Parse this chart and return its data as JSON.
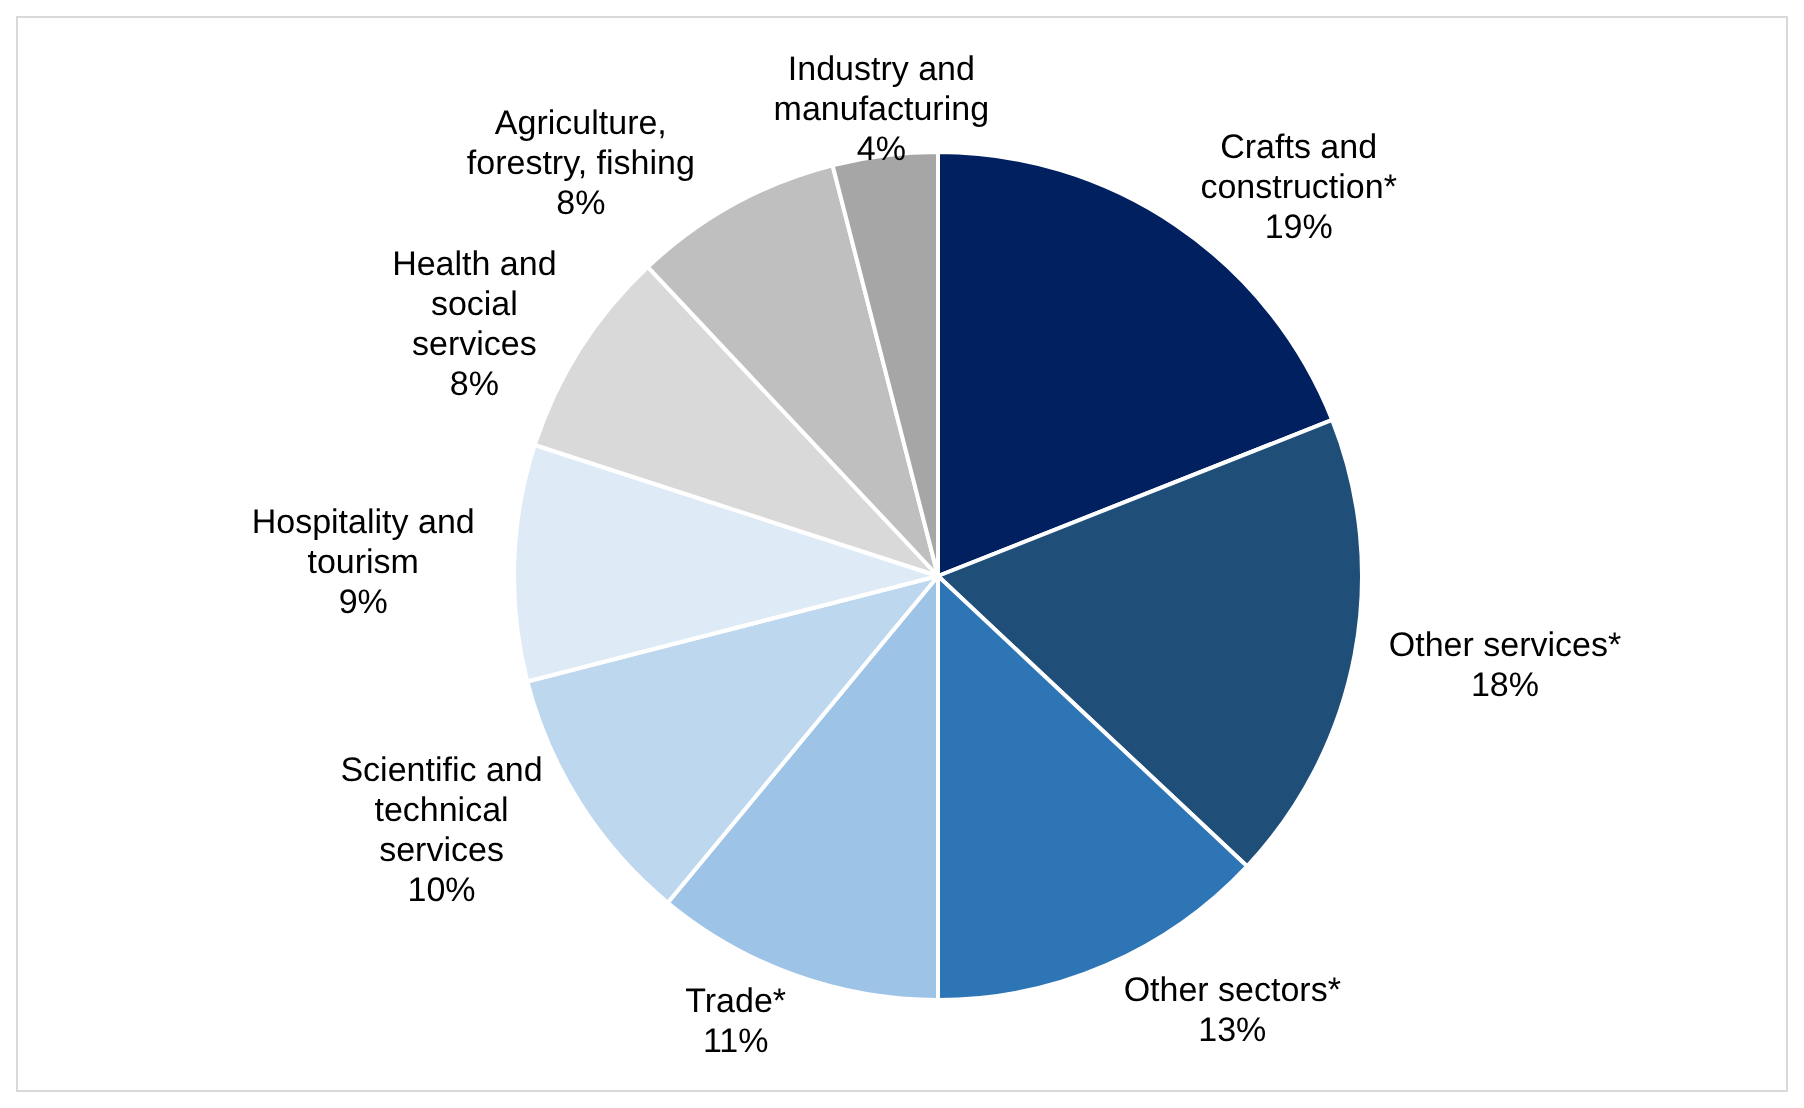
{
  "chart_data": {
    "type": "pie",
    "categories": [
      "Crafts and construction*",
      "Other services*",
      "Other sectors*",
      "Trade*",
      "Scientific and technical services",
      "Hospitality and tourism",
      "Health and social services",
      "Agriculture, forestry, fishing",
      "Industry and manufacturing"
    ],
    "values": [
      19,
      18,
      13,
      11,
      10,
      9,
      8,
      8,
      4
    ],
    "colors": [
      "#002060",
      "#1f4e79",
      "#2e75b6",
      "#9dc3e6",
      "#bdd7ee",
      "#deebf7",
      "#d9d9d9",
      "#bfbfbf",
      "#a6a6a6"
    ],
    "value_labels": [
      "19%",
      "18%",
      "13%",
      "11%",
      "10%",
      "9%",
      "8%",
      "8%",
      "4%"
    ]
  }
}
